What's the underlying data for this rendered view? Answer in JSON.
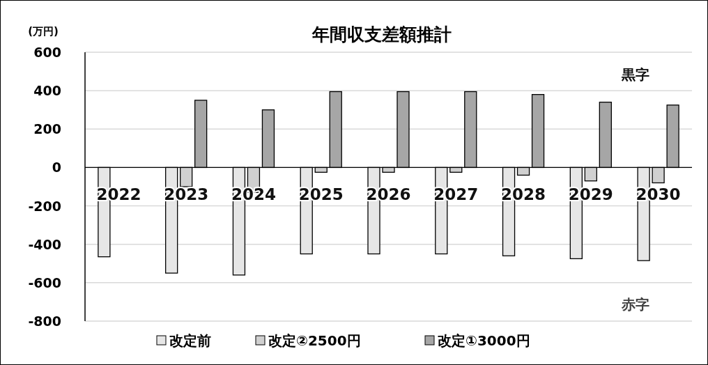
{
  "chart_data": {
    "type": "bar",
    "title": "年間収支差額推計",
    "ylabel": "(万円)",
    "categories": [
      "2022",
      "2023",
      "2024",
      "2025",
      "2026",
      "2027",
      "2028",
      "2029",
      "2030"
    ],
    "series": [
      {
        "name": "改定前",
        "color": "#e6e6e6",
        "values": [
          -465,
          -550,
          -560,
          -450,
          -450,
          -450,
          -460,
          -475,
          -485
        ]
      },
      {
        "name": "改定②2500円",
        "color": "#d0d0d0",
        "values": [
          null,
          -100,
          -130,
          -25,
          -25,
          -25,
          -40,
          -70,
          -80
        ]
      },
      {
        "name": "改定①3000円",
        "color": "#a6a6a6",
        "values": [
          null,
          350,
          300,
          395,
          395,
          395,
          380,
          340,
          325
        ]
      }
    ],
    "ylim": [
      -800,
      600
    ],
    "yticks": [
      -800,
      -600,
      -400,
      -200,
      0,
      200,
      400,
      600
    ],
    "grid": "y",
    "legend": "bottom",
    "annotations": [
      "黒字",
      "赤字"
    ]
  }
}
